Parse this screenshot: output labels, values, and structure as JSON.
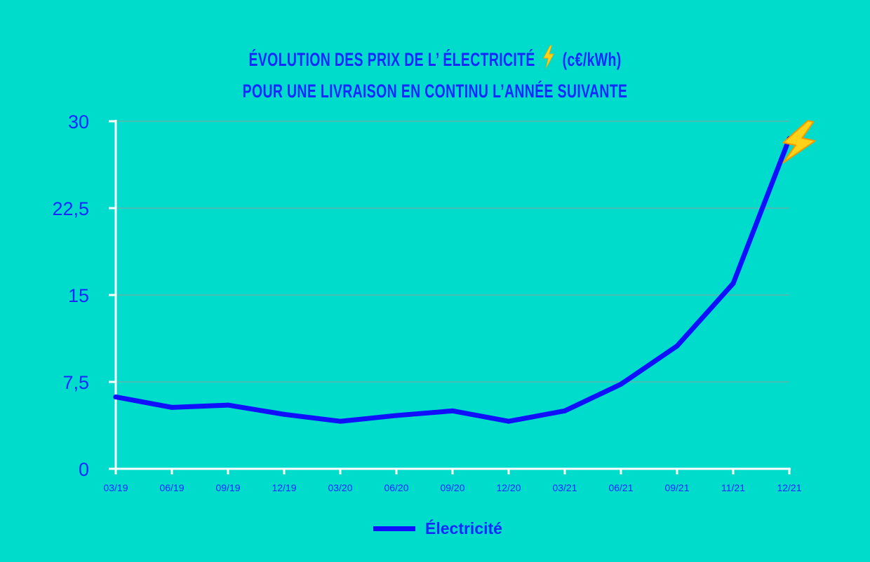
{
  "titles": {
    "line1_prefix": "ÉVOLUTION DES PRIX DE L’ ÉLECTRICITÉ",
    "line1_suffix": "(c€/kWh)",
    "line2": "POUR UNE LIVRAISON EN CONTINU L’ANNÉE SUIVANTE"
  },
  "icons": {
    "title_icon": "lightning-bolt-icon",
    "peak_icon": "lightning-bolt-icon"
  },
  "colors": {
    "background": "#00dccb",
    "text": "#1428ff",
    "line": "#1010ff",
    "axis": "#ffffff",
    "grid": "#8aa0a0"
  },
  "chart_data": {
    "type": "line",
    "title": "ÉVOLUTION DES PRIX DE L’ ÉLECTRICITÉ (c€/kWh) POUR UNE LIVRAISON EN CONTINU L’ANNÉE SUIVANTE",
    "categories": [
      "03/19",
      "06/19",
      "09/19",
      "12/19",
      "03/20",
      "06/20",
      "09/20",
      "12/20",
      "03/21",
      "06/21",
      "09/21",
      "11/21",
      "12/21"
    ],
    "series": [
      {
        "name": "Électricité",
        "values": [
          6.2,
          5.3,
          5.5,
          4.7,
          4.1,
          4.6,
          5.0,
          4.1,
          5.0,
          7.3,
          10.6,
          16.0,
          28.5
        ]
      }
    ],
    "ylim": [
      0,
      30
    ],
    "yticks": [
      0,
      7.5,
      15,
      22.5,
      30
    ],
    "ytick_labels": [
      "0",
      "7,5",
      "15",
      "22,5",
      "30"
    ],
    "grid": true,
    "legend": "bottom-center",
    "xlabel": "",
    "ylabel": ""
  }
}
